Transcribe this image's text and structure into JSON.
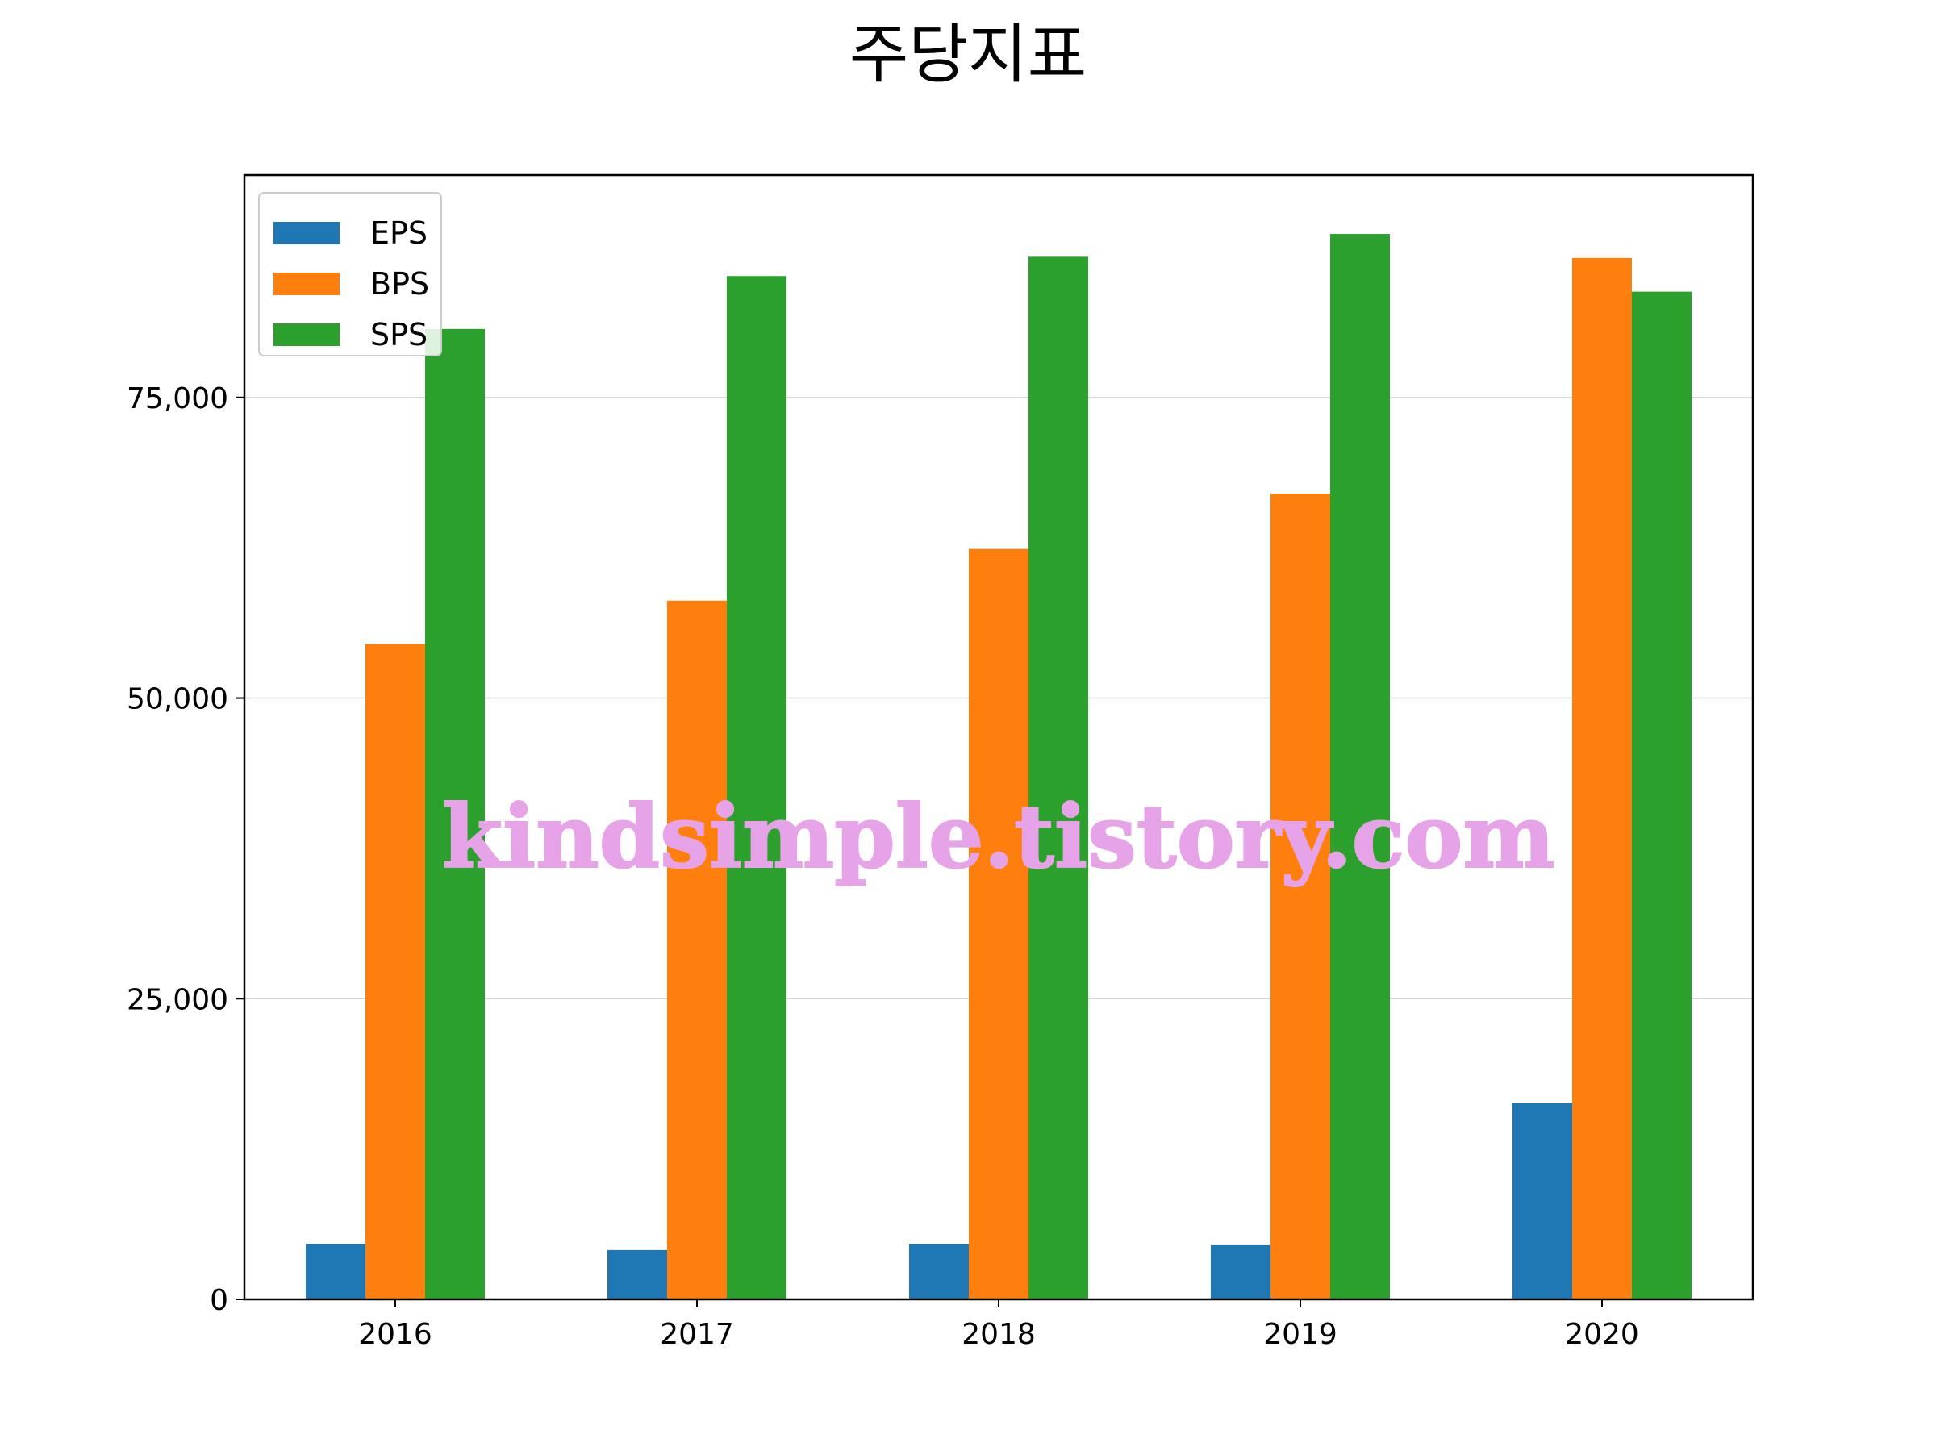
{
  "chart_data": {
    "type": "bar",
    "title": "주당지표",
    "xlabel": "",
    "ylabel": "",
    "categories": [
      "2016",
      "2017",
      "2018",
      "2019",
      "2020"
    ],
    "series": [
      {
        "name": "EPS",
        "color": "#1f77b4",
        "values": [
          4600,
          4100,
          4600,
          4500,
          16300
        ]
      },
      {
        "name": "BPS",
        "color": "#ff7f0e",
        "values": [
          54500,
          58100,
          62400,
          67000,
          86600
        ]
      },
      {
        "name": "SPS",
        "color": "#2ca02c",
        "values": [
          80700,
          85100,
          86700,
          88600,
          83800
        ]
      }
    ],
    "ylim": [
      0,
      93500
    ],
    "yticks": [
      0,
      25000,
      50000,
      75000
    ],
    "ytick_labels": [
      "0",
      "25,000",
      "50,000",
      "75,000"
    ],
    "grid": "horizontal",
    "legend_position": "top-left",
    "watermark": "kindsimple.tistory.com",
    "watermark_color": "#e6a3e8"
  }
}
